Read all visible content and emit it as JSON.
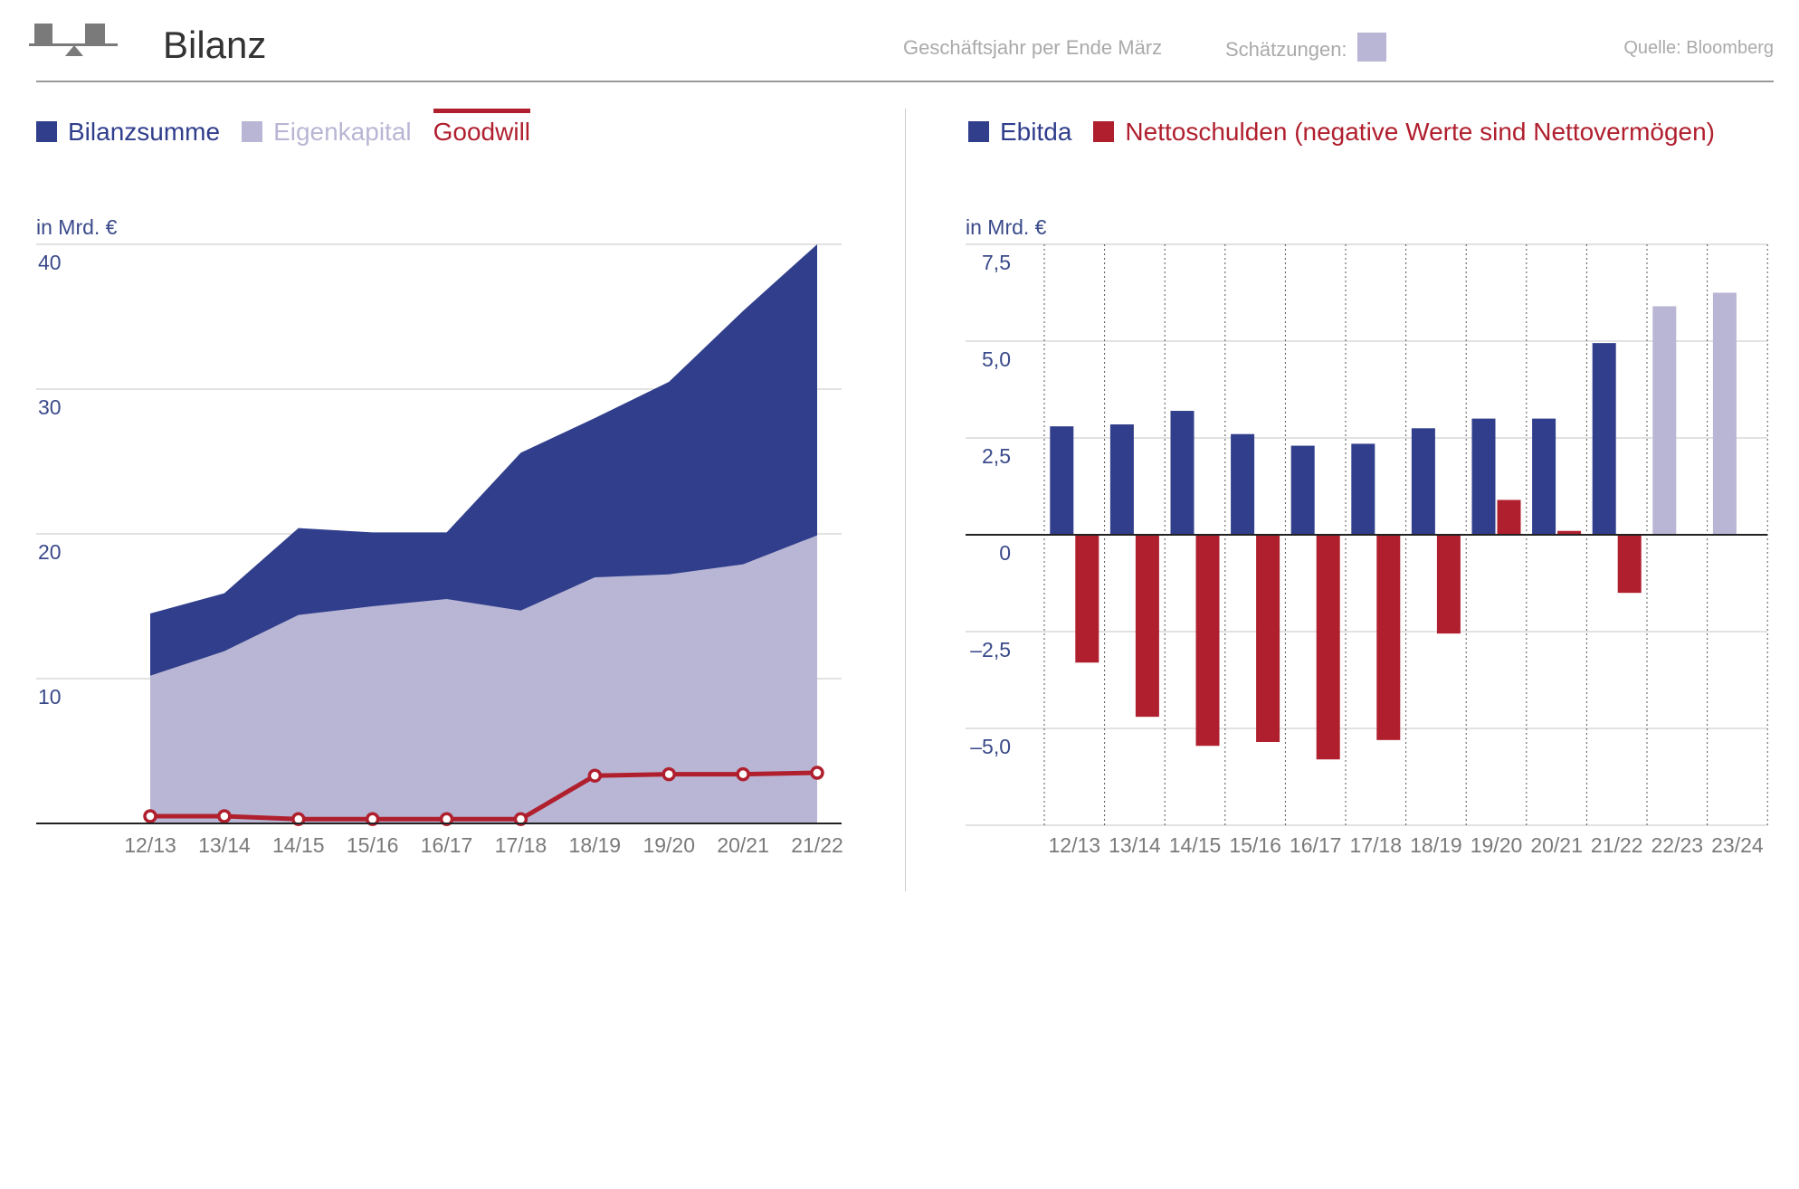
{
  "header": {
    "title": "Bilanz",
    "fiscal_note": "Geschäftsjahr per Ende März",
    "estimates_label": "Schätzungen:",
    "source": "Quelle: Bloomberg",
    "logo_icon": "scale-balance-icon"
  },
  "colors": {
    "navy": "#303e8c",
    "lavender": "#b8b6d4",
    "red": "#b01f2e",
    "grid": "#d0d0d0",
    "axis_text": "#3a4a8a",
    "xtick_text": "#7a7a7a"
  },
  "left_legend": [
    {
      "label": "Bilanzsumme",
      "color": "#303e8c",
      "kind": "square"
    },
    {
      "label": "Eigenkapital",
      "color": "#b8b6d4",
      "kind": "square"
    },
    {
      "label": "Goodwill",
      "color": "#b01f2e",
      "kind": "line"
    }
  ],
  "right_legend": [
    {
      "label": "Ebitda",
      "color": "#303e8c",
      "kind": "square"
    },
    {
      "label": "Nettoschulden (negative Werte sind Nettovermögen)",
      "color": "#b01f2e",
      "kind": "square"
    }
  ],
  "chart_data": [
    {
      "type": "area",
      "unit_label": "in Mrd. €",
      "categories": [
        "12/13",
        "13/14",
        "14/15",
        "15/16",
        "16/17",
        "17/18",
        "18/19",
        "19/20",
        "20/21",
        "21/22"
      ],
      "ylim": [
        0,
        40
      ],
      "yticks": [
        10,
        20,
        30,
        40
      ],
      "ytick_labels": [
        "10",
        "20",
        "30",
        "40"
      ],
      "grid": true,
      "series": [
        {
          "name": "Bilanzsumme",
          "kind": "area",
          "color": "#303e8c",
          "values": [
            14.5,
            15.9,
            20.4,
            20.1,
            20.1,
            25.6,
            28.0,
            30.5,
            35.4,
            40.0
          ]
        },
        {
          "name": "Eigenkapital",
          "kind": "area",
          "color": "#b8b6d4",
          "values": [
            10.2,
            11.9,
            14.4,
            15.0,
            15.5,
            14.7,
            17.0,
            17.2,
            17.9,
            19.9
          ]
        },
        {
          "name": "Goodwill",
          "kind": "line",
          "color": "#b01f2e",
          "values": [
            0.5,
            0.5,
            0.3,
            0.3,
            0.3,
            0.3,
            3.3,
            3.4,
            3.4,
            3.5
          ]
        }
      ]
    },
    {
      "type": "bar",
      "unit_label": "in Mrd. €",
      "categories": [
        "12/13",
        "13/14",
        "14/15",
        "15/16",
        "16/17",
        "17/18",
        "18/19",
        "19/20",
        "20/21",
        "21/22",
        "22/23",
        "23/24"
      ],
      "ylim": [
        -7.5,
        7.5
      ],
      "yticks": [
        7.5,
        5.0,
        2.5,
        0,
        -2.5,
        -5.0
      ],
      "ytick_labels": [
        "7,5",
        "5,0",
        "2,5",
        "0",
        "–2,5",
        "–5,0"
      ],
      "grid": true,
      "estimate_categories": [
        "22/23",
        "23/24"
      ],
      "series": [
        {
          "name": "Ebitda",
          "color": "#303e8c",
          "estimate_color": "#b8b6d4",
          "values": [
            2.8,
            2.85,
            3.2,
            2.6,
            2.3,
            2.35,
            2.75,
            3.0,
            3.0,
            4.95,
            5.9,
            6.25
          ]
        },
        {
          "name": "Nettoschulden (negative Werte sind Nettovermögen)",
          "color": "#b01f2e",
          "values": [
            -3.3,
            -4.7,
            -5.45,
            -5.35,
            -5.8,
            -5.3,
            -2.55,
            0.9,
            0.1,
            -1.5,
            null,
            null
          ]
        }
      ]
    }
  ]
}
